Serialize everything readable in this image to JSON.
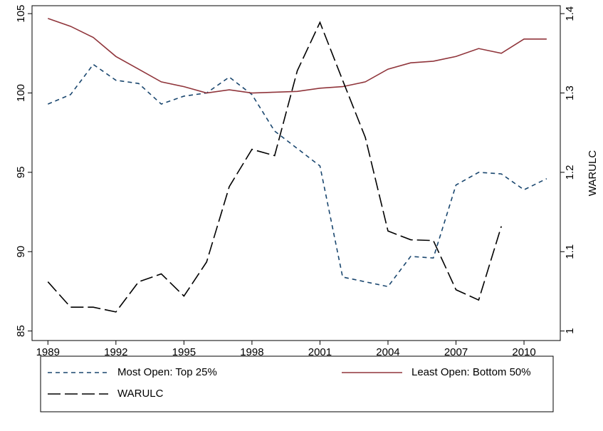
{
  "chart_data": {
    "type": "line",
    "x": [
      1989,
      1990,
      1991,
      1992,
      1993,
      1994,
      1995,
      1996,
      1997,
      1998,
      1999,
      2000,
      2001,
      2002,
      2003,
      2004,
      2005,
      2006,
      2007,
      2008,
      2009,
      2010,
      2011
    ],
    "series": [
      {
        "name": "Most Open: Top 25%",
        "color": "#1a476f",
        "dash": "6,5",
        "values": [
          99.3,
          99.9,
          101.8,
          100.8,
          100.6,
          99.3,
          99.8,
          100.0,
          101.0,
          99.9,
          97.6,
          96.5,
          95.4,
          88.4,
          88.1,
          87.8,
          89.7,
          89.6,
          94.2,
          95.0,
          94.9,
          93.9,
          94.6
        ]
      },
      {
        "name": "Least Open: Bottom 50%",
        "color": "#90353b",
        "dash": "none",
        "values": [
          104.7,
          104.2,
          103.5,
          102.3,
          101.5,
          100.7,
          100.4,
          100.0,
          100.2,
          100.0,
          100.05,
          100.1,
          100.3,
          100.4,
          100.7,
          101.5,
          101.9,
          102.0,
          102.3,
          102.8,
          102.5,
          103.4,
          103.4
        ]
      },
      {
        "name": "WARULC",
        "color": "#000000",
        "dash": "18,6",
        "axis": "y2",
        "values": [
          1.062,
          1.03,
          1.03,
          1.024,
          1.062,
          1.072,
          1.044,
          1.087,
          1.182,
          1.229,
          1.221,
          1.328,
          1.389,
          1.316,
          1.244,
          1.126,
          1.115,
          1.114,
          1.052,
          1.039,
          1.132,
          null,
          null
        ]
      }
    ],
    "xlim": [
      1988.3,
      2011.6
    ],
    "xticks": [
      1989,
      1992,
      1995,
      1998,
      2001,
      2004,
      2007,
      2010
    ],
    "ylim": [
      84.4,
      105.5
    ],
    "yticks": [
      85,
      90,
      95,
      100,
      105
    ],
    "y2lim": [
      0.988,
      1.41
    ],
    "y2ticks": [
      1,
      1.1,
      1.2,
      1.3,
      1.4
    ],
    "y2label": "WARULC",
    "grid": false,
    "legend": "bottom"
  }
}
